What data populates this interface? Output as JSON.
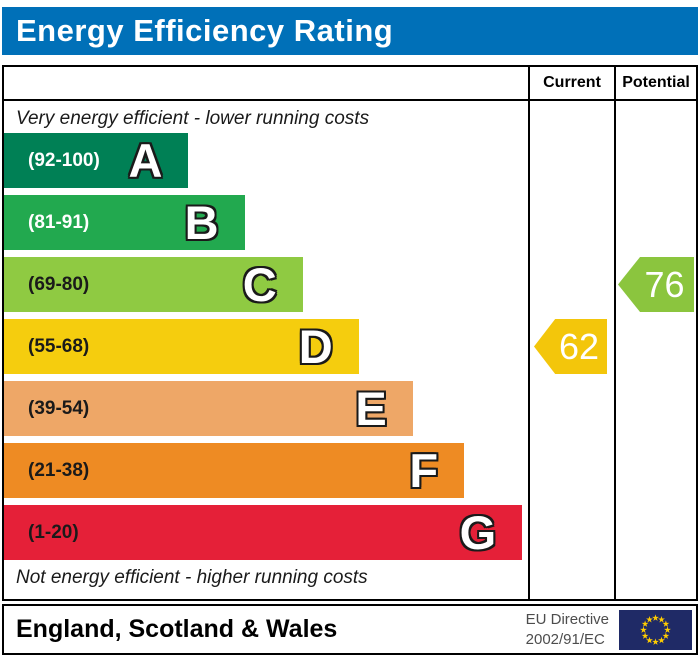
{
  "title": "Energy Efficiency Rating",
  "columns": {
    "current": "Current",
    "potential": "Potential"
  },
  "top_note": "Very energy efficient - lower running costs",
  "bottom_note": "Not energy efficient - higher running costs",
  "bands": [
    {
      "letter": "A",
      "range": "(92-100)",
      "color": "#008055",
      "range_color": "#ffffff",
      "width": "35.2%"
    },
    {
      "letter": "B",
      "range": "(81-91)",
      "color": "#22a94f",
      "range_color": "#ffffff",
      "width": "45.9%"
    },
    {
      "letter": "C",
      "range": "(69-80)",
      "color": "#8fca42",
      "range_color": "#1a1a1a",
      "width": "57.0%"
    },
    {
      "letter": "D",
      "range": "(55-68)",
      "color": "#f5cd0e",
      "range_color": "#1a1a1a",
      "width": "67.7%"
    },
    {
      "letter": "E",
      "range": "(39-54)",
      "color": "#eea767",
      "range_color": "#1a1a1a",
      "width": "78.0%"
    },
    {
      "letter": "F",
      "range": "(21-38)",
      "color": "#ee8b23",
      "range_color": "#1a1a1a",
      "width": "87.8%"
    },
    {
      "letter": "G",
      "range": "(1-20)",
      "color": "#e52038",
      "range_color": "#1a1a1a",
      "width": "98.9%"
    }
  ],
  "ratings": {
    "current": {
      "value": "62",
      "band": "D",
      "band_index": 3,
      "color": "#f3c60b"
    },
    "potential": {
      "value": "76",
      "band": "C",
      "band_index": 2,
      "color": "#8bc53e"
    }
  },
  "footer": {
    "region": "England, Scotland & Wales",
    "directive_line1": "EU Directive",
    "directive_line2": "2002/91/EC",
    "eu_flag": {
      "background": "#1f2a66",
      "star_color": "#ffcc00"
    }
  },
  "colors": {
    "title_bar": "#0070b8",
    "border": "#000000"
  },
  "chart_data": {
    "type": "bar",
    "title": "Energy Efficiency Rating",
    "categories": [
      "A",
      "B",
      "C",
      "D",
      "E",
      "F",
      "G"
    ],
    "band_ranges": [
      "92-100",
      "81-91",
      "69-80",
      "55-68",
      "39-54",
      "21-38",
      "1-20"
    ],
    "band_colors": [
      "#008055",
      "#22a94f",
      "#8fca42",
      "#f5cd0e",
      "#eea767",
      "#ee8b23",
      "#e52038"
    ],
    "bar_widths_pct": [
      35.2,
      45.9,
      57.0,
      67.7,
      78.0,
      87.8,
      98.9
    ],
    "series": [
      {
        "name": "Current",
        "value": 62,
        "band": "D",
        "marker_color": "#f3c60b"
      },
      {
        "name": "Potential",
        "value": 76,
        "band": "C",
        "marker_color": "#8bc53e"
      }
    ],
    "annotations": [
      "Very energy efficient - lower running costs",
      "Not energy efficient - higher running costs"
    ],
    "footnote": "England, Scotland & Wales — EU Directive 2002/91/EC",
    "axis_range": [
      1,
      100
    ],
    "legend_position": "top-right columns",
    "grid": false
  }
}
